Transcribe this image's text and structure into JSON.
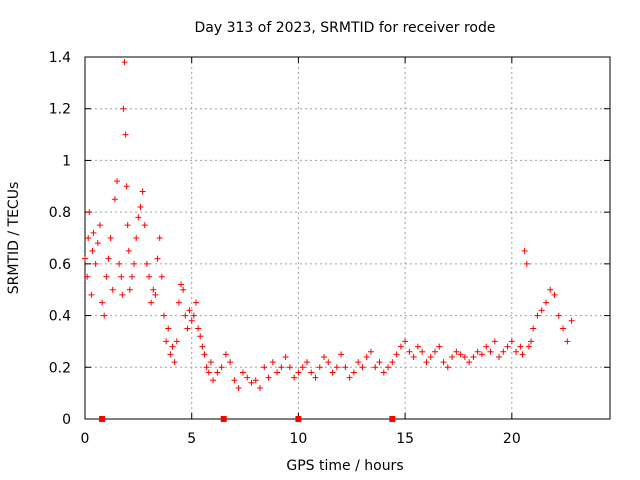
{
  "chart_data": {
    "type": "scatter",
    "title": "Day 313 of 2023, SRMTID for receiver rode",
    "xlabel": "GPS time / hours",
    "ylabel": "SRMTID / TECUs",
    "xlim": [
      0,
      24.6
    ],
    "ylim": [
      0,
      1.4
    ],
    "x_ticks": [
      0,
      5,
      10,
      15,
      20
    ],
    "x_tick_labels": [
      "0",
      "5",
      "10",
      "15",
      "20"
    ],
    "y_ticks": [
      0,
      0.2,
      0.4,
      0.6,
      0.8,
      1.0,
      1.2,
      1.4
    ],
    "y_tick_labels": [
      "0",
      "0.2",
      "0.4",
      "0.6",
      "0.8",
      "1",
      "1.2",
      "1.4"
    ],
    "grid": true,
    "marker": "+",
    "color": "#ff0000",
    "series": [
      {
        "name": "SRMTID",
        "x": [
          0.0,
          0.1,
          0.15,
          0.2,
          0.3,
          0.35,
          0.4,
          0.5,
          0.6,
          0.7,
          0.8,
          0.9,
          1.0,
          1.1,
          1.2,
          1.3,
          1.4,
          1.5,
          1.6,
          1.7,
          1.75,
          1.8,
          1.85,
          1.9,
          1.95,
          2.0,
          2.05,
          2.1,
          2.2,
          2.3,
          2.4,
          2.5,
          2.6,
          2.7,
          2.8,
          2.9,
          3.0,
          3.1,
          3.2,
          3.3,
          3.4,
          3.5,
          3.6,
          3.7,
          3.8,
          3.9,
          4.0,
          4.1,
          4.2,
          4.3,
          4.4,
          4.5,
          4.6,
          4.7,
          4.8,
          4.9,
          5.0,
          5.1,
          5.2,
          5.3,
          5.4,
          5.5,
          5.6,
          5.7,
          5.8,
          5.9,
          6.0,
          6.2,
          6.4,
          6.6,
          6.8,
          7.0,
          7.2,
          7.4,
          7.6,
          7.8,
          8.0,
          8.2,
          8.4,
          8.6,
          8.8,
          9.0,
          9.2,
          9.4,
          9.6,
          9.8,
          10.0,
          10.2,
          10.4,
          10.6,
          10.8,
          11.0,
          11.2,
          11.4,
          11.6,
          11.8,
          12.0,
          12.2,
          12.4,
          12.6,
          12.8,
          13.0,
          13.2,
          13.4,
          13.6,
          13.8,
          14.0,
          14.2,
          14.4,
          14.6,
          14.8,
          15.0,
          15.2,
          15.4,
          15.6,
          15.8,
          16.0,
          16.2,
          16.4,
          16.6,
          16.8,
          17.0,
          17.2,
          17.4,
          17.6,
          17.8,
          18.0,
          18.2,
          18.4,
          18.6,
          18.8,
          19.0,
          19.2,
          19.4,
          19.6,
          19.8,
          20.0,
          20.2,
          20.4,
          20.5,
          20.6,
          20.7,
          20.8,
          20.9,
          21.0,
          21.2,
          21.4,
          21.6,
          21.8,
          22.0,
          22.2,
          22.4,
          22.6,
          22.8
        ],
        "y": [
          0.62,
          0.55,
          0.7,
          0.8,
          0.48,
          0.65,
          0.72,
          0.6,
          0.68,
          0.75,
          0.45,
          0.4,
          0.55,
          0.62,
          0.7,
          0.5,
          0.85,
          0.92,
          0.6,
          0.55,
          0.48,
          1.2,
          1.38,
          1.1,
          0.9,
          0.75,
          0.65,
          0.5,
          0.55,
          0.6,
          0.7,
          0.78,
          0.82,
          0.88,
          0.75,
          0.6,
          0.55,
          0.45,
          0.5,
          0.48,
          0.62,
          0.7,
          0.55,
          0.4,
          0.3,
          0.35,
          0.25,
          0.28,
          0.22,
          0.3,
          0.45,
          0.52,
          0.5,
          0.4,
          0.35,
          0.42,
          0.38,
          0.4,
          0.45,
          0.35,
          0.32,
          0.28,
          0.25,
          0.2,
          0.18,
          0.22,
          0.15,
          0.18,
          0.2,
          0.25,
          0.22,
          0.15,
          0.12,
          0.18,
          0.16,
          0.14,
          0.15,
          0.12,
          0.2,
          0.16,
          0.22,
          0.18,
          0.2,
          0.24,
          0.2,
          0.16,
          0.18,
          0.2,
          0.22,
          0.18,
          0.16,
          0.2,
          0.24,
          0.22,
          0.18,
          0.2,
          0.25,
          0.2,
          0.16,
          0.18,
          0.22,
          0.2,
          0.24,
          0.26,
          0.2,
          0.22,
          0.18,
          0.2,
          0.22,
          0.25,
          0.28,
          0.3,
          0.26,
          0.24,
          0.28,
          0.26,
          0.22,
          0.24,
          0.26,
          0.28,
          0.22,
          0.2,
          0.24,
          0.26,
          0.25,
          0.24,
          0.22,
          0.24,
          0.26,
          0.25,
          0.28,
          0.26,
          0.3,
          0.24,
          0.26,
          0.28,
          0.3,
          0.26,
          0.28,
          0.25,
          0.65,
          0.6,
          0.28,
          0.3,
          0.35,
          0.4,
          0.42,
          0.45,
          0.5,
          0.48,
          0.4,
          0.35,
          0.3,
          0.38
        ]
      }
    ],
    "axis_markers_x": [
      0.8,
      6.5,
      10.0,
      14.4
    ]
  }
}
